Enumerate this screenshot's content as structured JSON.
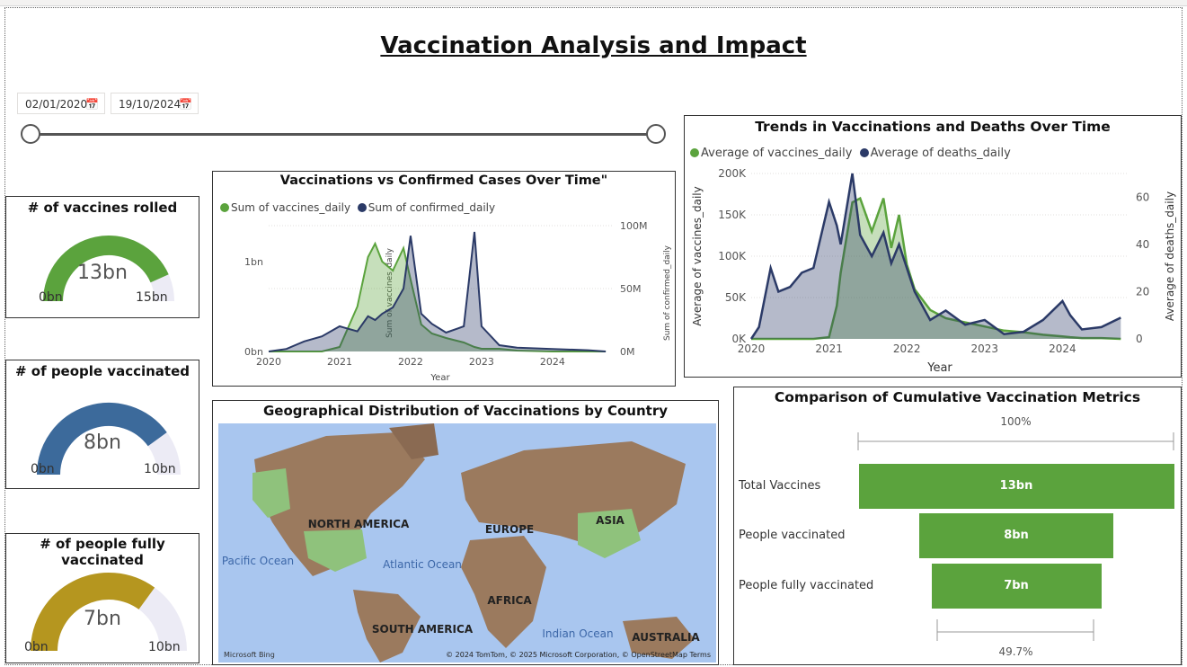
{
  "page": {
    "title": "Vaccination Analysis and Impact"
  },
  "colors": {
    "green": "#5ba33d",
    "navy": "#2b3a67",
    "steel": "#3c6a9b",
    "gold": "#b5961f",
    "track": "#ecebf5"
  },
  "date_filter": {
    "start": "02/01/2020",
    "end": "19/10/2024",
    "icon": "calendar-icon"
  },
  "gauges": [
    {
      "title": "# of vaccines rolled",
      "value_label": "13bn",
      "min": "0bn",
      "max": "15bn",
      "value": 13,
      "max_value": 15
    },
    {
      "title": "# of people vaccinated",
      "value_label": "8bn",
      "min": "0bn",
      "max": "10bn",
      "value": 8,
      "max_value": 10
    },
    {
      "title": "# of people fully vaccinated",
      "value_label": "7bn",
      "min": "0bn",
      "max": "10bn",
      "value": 7,
      "max_value": 10
    }
  ],
  "chart1": {
    "title": "Vaccinations vs Confirmed Cases Over Time\"",
    "legend": [
      "Sum of vaccines_daily",
      "Sum of confirmed_daily"
    ],
    "ylabel_left": "Sum of vaccines_daily",
    "ylabel_right": "Sum of confirmed_daily",
    "xlabel": "Year",
    "yticks_left": [
      "0bn",
      "1bn"
    ],
    "yticks_right": [
      "0M",
      "50M",
      "100M"
    ],
    "xticks": [
      "2020",
      "2021",
      "2022",
      "2023",
      "2024"
    ]
  },
  "chart2": {
    "title": "Trends in Vaccinations and Deaths Over Time",
    "legend": [
      "Average of vaccines_daily",
      "Average of deaths_daily"
    ],
    "ylabel_left": "Average of vaccines_daily",
    "ylabel_right": "Average of deaths_daily",
    "xlabel": "Year",
    "yticks_left": [
      "0K",
      "50K",
      "100K",
      "150K",
      "200K"
    ],
    "yticks_right": [
      "0",
      "20",
      "40",
      "60"
    ],
    "xticks": [
      "2020",
      "2021",
      "2022",
      "2023",
      "2024"
    ]
  },
  "map": {
    "title": "Geographical Distribution of Vaccinations by Country",
    "labels": [
      "NORTH AMERICA",
      "EUROPE",
      "ASIA",
      "AFRICA",
      "SOUTH AMERICA",
      "AUSTRALIA"
    ],
    "ocean_labels": [
      "Pacific Ocean",
      "Atlantic Ocean",
      "Indian Ocean"
    ],
    "bing": "Microsoft Bing",
    "credits": "© 2024 TomTom, © 2025 Microsoft Corporation, © OpenStreetMap  Terms"
  },
  "funnel": {
    "title": "Comparison of Cumulative Vaccination Metrics",
    "top_pct": "100%",
    "bottom_pct": "49.7%",
    "rows": [
      {
        "label": "Total Vaccines",
        "value_label": "13bn",
        "value": 13
      },
      {
        "label": "People vaccinated",
        "value_label": "8bn",
        "value": 8
      },
      {
        "label": "People fully vaccinated",
        "value_label": "7bn",
        "value": 7
      }
    ]
  },
  "chart_data": [
    {
      "type": "area",
      "title": "Vaccinations vs Confirmed Cases Over Time\"",
      "xlabel": "Year",
      "x": [
        2020.0,
        2020.25,
        2020.5,
        2020.75,
        2021.0,
        2021.25,
        2021.4,
        2021.5,
        2021.6,
        2021.75,
        2021.9,
        2022.0,
        2022.15,
        2022.3,
        2022.5,
        2022.75,
        2022.9,
        2023.0,
        2023.25,
        2023.5,
        2024.0,
        2024.5,
        2024.75
      ],
      "series": [
        {
          "name": "Sum of vaccines_daily",
          "axis": "left",
          "unit": "bn",
          "values": [
            0,
            0,
            0,
            0,
            0.05,
            0.5,
            1.05,
            1.2,
            1.0,
            0.9,
            1.15,
            0.8,
            0.3,
            0.2,
            0.15,
            0.1,
            0.05,
            0.03,
            0.03,
            0.01,
            0,
            0,
            0
          ]
        },
        {
          "name": "Sum of confirmed_daily",
          "axis": "right",
          "unit": "M",
          "values": [
            0,
            2,
            8,
            12,
            20,
            16,
            28,
            25,
            30,
            35,
            50,
            92,
            30,
            22,
            15,
            20,
            95,
            20,
            5,
            3,
            2,
            1,
            0
          ]
        }
      ],
      "ylim_left": [
        0,
        1.4
      ],
      "ylim_right": [
        0,
        100
      ]
    },
    {
      "type": "area",
      "title": "Trends in Vaccinations and Deaths Over Time",
      "xlabel": "Year",
      "x": [
        2020.0,
        2020.1,
        2020.25,
        2020.35,
        2020.5,
        2020.65,
        2020.8,
        2021.0,
        2021.1,
        2021.15,
        2021.3,
        2021.4,
        2021.55,
        2021.7,
        2021.8,
        2021.9,
        2022.0,
        2022.1,
        2022.3,
        2022.5,
        2022.75,
        2023.0,
        2023.25,
        2023.5,
        2023.75,
        2024.0,
        2024.1,
        2024.25,
        2024.5,
        2024.75
      ],
      "series": [
        {
          "name": "Average of vaccines_daily",
          "axis": "left",
          "unit": "K",
          "values": [
            0,
            0,
            0,
            0,
            0,
            0,
            0,
            2,
            40,
            80,
            165,
            170,
            130,
            170,
            110,
            150,
            90,
            60,
            35,
            25,
            20,
            15,
            10,
            8,
            5,
            3,
            2,
            1,
            1,
            0
          ]
        },
        {
          "name": "Average of deaths_daily",
          "axis": "right",
          "unit": "",
          "values": [
            0,
            5,
            30,
            20,
            22,
            28,
            30,
            58,
            48,
            40,
            70,
            44,
            35,
            45,
            32,
            40,
            30,
            20,
            8,
            12,
            6,
            8,
            2,
            3,
            8,
            16,
            10,
            4,
            5,
            9
          ]
        }
      ],
      "ylim_left": [
        0,
        200
      ],
      "ylim_right": [
        0,
        70
      ]
    },
    {
      "type": "bar",
      "title": "Comparison of Cumulative Vaccination Metrics",
      "categories": [
        "Total Vaccines",
        "People vaccinated",
        "People fully vaccinated"
      ],
      "values": [
        13,
        8,
        7
      ],
      "unit": "bn"
    }
  ]
}
